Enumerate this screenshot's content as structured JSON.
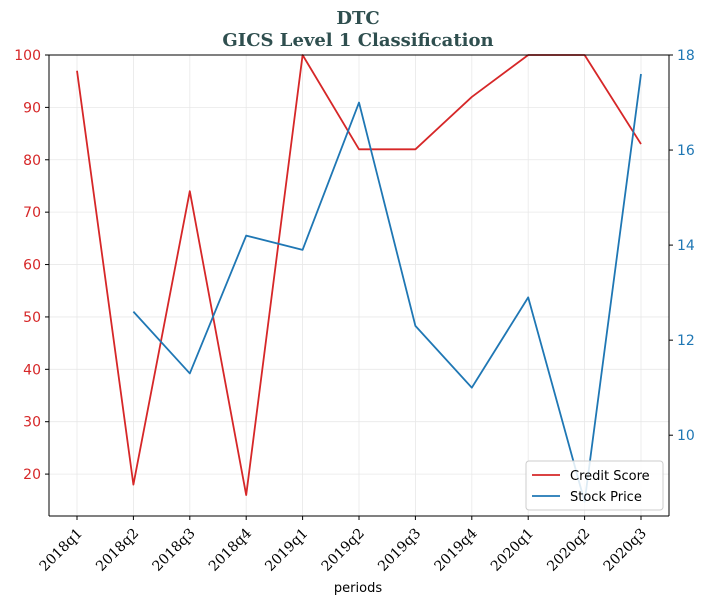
{
  "chart_data": {
    "type": "line",
    "title": "DTC",
    "subtitle": "GICS Level 1 Classification",
    "xlabel": "periods",
    "categories": [
      "2018q1",
      "2018q2",
      "2018q3",
      "2018q4",
      "2019q1",
      "2019q2",
      "2019q3",
      "2019q4",
      "2020q1",
      "2020q2",
      "2020q3"
    ],
    "series": [
      {
        "name": "Credit Score",
        "axis": "left",
        "color": "#d62728",
        "values": [
          97,
          18,
          74,
          16,
          100,
          82,
          82,
          92,
          100,
          100,
          83
        ]
      },
      {
        "name": "Stock Price",
        "axis": "right",
        "color": "#1f77b4",
        "values": [
          null,
          12.6,
          11.3,
          14.2,
          13.9,
          17.0,
          12.3,
          11.0,
          12.9,
          8.6,
          17.6
        ]
      }
    ],
    "y_left": {
      "ylim": [
        12,
        100
      ],
      "ticks": [
        20,
        30,
        40,
        50,
        60,
        70,
        80,
        90,
        100
      ],
      "color": "#d62728"
    },
    "y_right": {
      "ylim": [
        8.3,
        18
      ],
      "ticks": [
        10,
        12,
        14,
        16,
        18
      ],
      "color": "#1f77b4"
    },
    "grid": true,
    "legend_position": "bottom-right",
    "title_color": "#2f4f4f"
  }
}
